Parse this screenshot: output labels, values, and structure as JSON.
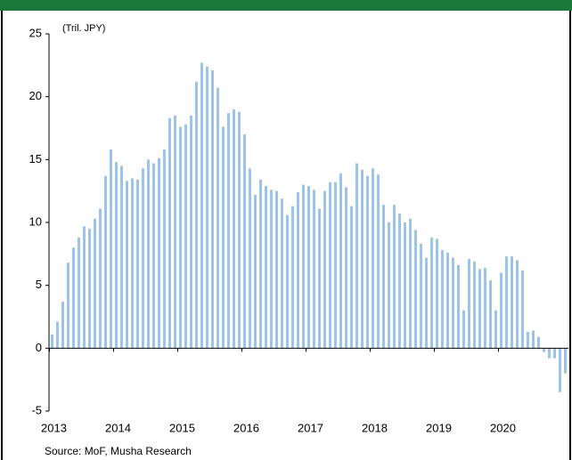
{
  "chart_data": {
    "type": "bar",
    "y_unit": "(Tril. JPY)",
    "source": "Source: MoF, Musha Research",
    "color": "#9dc3e6",
    "categories": [
      "2013",
      null,
      null,
      null,
      null,
      null,
      null,
      null,
      null,
      null,
      null,
      null,
      "2014",
      null,
      null,
      null,
      null,
      null,
      null,
      null,
      null,
      null,
      null,
      null,
      "2015",
      null,
      null,
      null,
      null,
      null,
      null,
      null,
      null,
      null,
      null,
      null,
      "2016",
      null,
      null,
      null,
      null,
      null,
      null,
      null,
      null,
      null,
      null,
      null,
      "2017",
      null,
      null,
      null,
      null,
      null,
      null,
      null,
      null,
      null,
      null,
      null,
      "2018",
      null,
      null,
      null,
      null,
      null,
      null,
      null,
      null,
      null,
      null,
      null,
      "2019",
      null,
      null,
      null,
      null,
      null,
      null,
      null,
      null,
      null,
      null,
      null,
      "2020",
      null,
      null,
      null,
      null,
      null,
      null,
      null,
      null,
      null,
      null,
      null,
      null
    ],
    "values": [
      1.1,
      2.1,
      3.7,
      6.8,
      8.0,
      8.8,
      9.7,
      9.5,
      10.3,
      11.1,
      13.7,
      15.8,
      14.8,
      14.5,
      13.3,
      13.5,
      13.4,
      14.3,
      15.0,
      14.7,
      15.1,
      15.8,
      18.3,
      18.5,
      17.6,
      17.8,
      18.5,
      21.2,
      22.7,
      22.4,
      22.1,
      20.7,
      17.6,
      18.7,
      19.0,
      18.8,
      17.0,
      14.3,
      12.2,
      13.4,
      12.9,
      12.6,
      12.5,
      11.9,
      10.6,
      11.3,
      12.4,
      13.0,
      12.9,
      12.6,
      11.1,
      12.5,
      13.2,
      13.2,
      13.9,
      12.8,
      11.3,
      14.7,
      14.2,
      13.7,
      14.3,
      13.8,
      11.4,
      10.0,
      11.4,
      10.7,
      10.0,
      10.3,
      9.4,
      8.3,
      7.2,
      8.8,
      8.7,
      7.8,
      7.6,
      7.2,
      6.6,
      3.0,
      7.1,
      6.9,
      6.3,
      6.4,
      5.4,
      3.0,
      6.0,
      7.3,
      7.3,
      7.0,
      6.2,
      1.3,
      1.4,
      0.9,
      -0.3,
      -0.8,
      -0.8,
      -3.5,
      -2.0
    ],
    "ylim": [
      -5,
      25
    ],
    "yticks": [
      -5,
      0,
      5,
      10,
      15,
      20,
      25
    ]
  }
}
